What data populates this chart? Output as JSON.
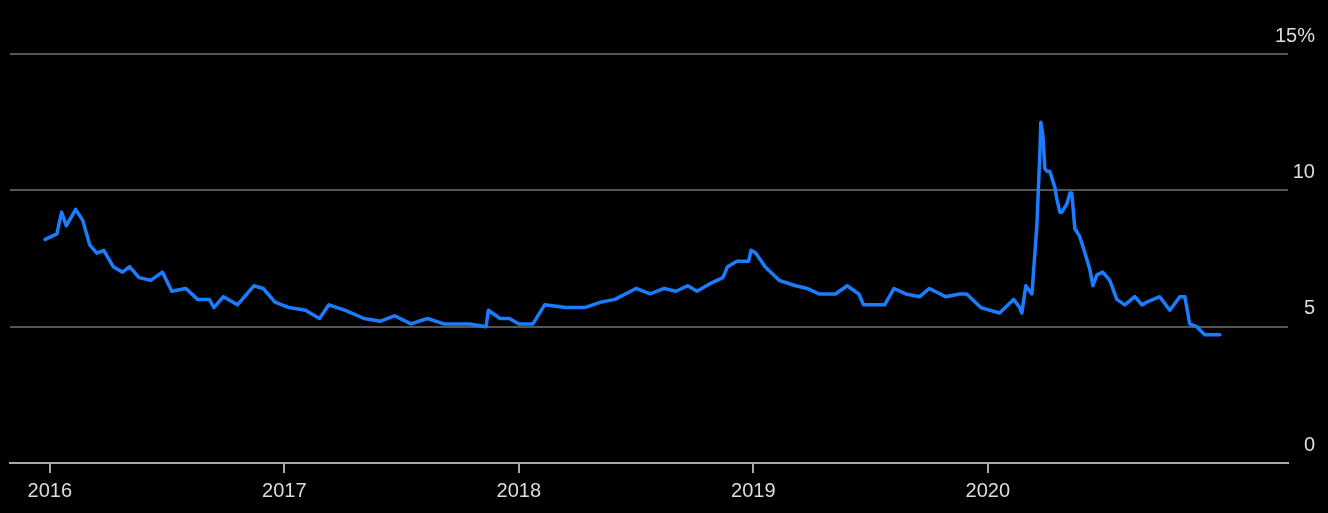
{
  "chart_data": {
    "type": "line",
    "x": [
      2015.98,
      2016.03,
      2016.05,
      2016.07,
      2016.11,
      2016.14,
      2016.17,
      2016.2,
      2016.23,
      2016.27,
      2016.31,
      2016.34,
      2016.38,
      2016.43,
      2016.48,
      2016.52,
      2016.58,
      2016.63,
      2016.68,
      2016.7,
      2016.74,
      2016.8,
      2016.87,
      2016.91,
      2016.96,
      2017.02,
      2017.09,
      2017.15,
      2017.19,
      2017.26,
      2017.34,
      2017.41,
      2017.47,
      2017.54,
      2017.61,
      2017.68,
      2017.79,
      2017.86,
      2017.87,
      2017.92,
      2017.96,
      2018.0,
      2018.06,
      2018.11,
      2018.2,
      2018.28,
      2018.35,
      2018.41,
      2018.5,
      2018.56,
      2018.62,
      2018.67,
      2018.72,
      2018.76,
      2018.82,
      2018.87,
      2018.89,
      2018.93,
      2018.98,
      2018.99,
      2019.01,
      2019.05,
      2019.11,
      2019.18,
      2019.23,
      2019.28,
      2019.35,
      2019.4,
      2019.45,
      2019.47,
      2019.5,
      2019.56,
      2019.6,
      2019.65,
      2019.71,
      2019.75,
      2019.82,
      2019.88,
      2019.91,
      2019.97,
      2020.05,
      2020.11,
      2020.136,
      2020.145,
      2020.162,
      2020.188,
      2020.209,
      2020.222,
      2020.226,
      2020.235,
      2020.243,
      2020.252,
      2020.264,
      2020.286,
      2020.294,
      2020.307,
      2020.316,
      2020.337,
      2020.35,
      2020.358,
      2020.371,
      2020.392,
      2020.414,
      2020.435,
      2020.448,
      2020.465,
      2020.49,
      2020.52,
      2020.55,
      2020.584,
      2020.627,
      2020.657,
      2020.678,
      2020.733,
      2020.776,
      2020.819,
      2020.84,
      2020.861,
      2020.891,
      2020.925,
      2020.989
    ],
    "series": [
      {
        "color": "#1a7dff",
        "values": [
          8.2,
          8.4,
          9.2,
          8.7,
          9.3,
          8.9,
          8.0,
          7.7,
          7.8,
          7.2,
          7.0,
          7.2,
          6.8,
          6.7,
          7.0,
          6.3,
          6.4,
          6.0,
          6.0,
          5.7,
          6.1,
          5.8,
          6.5,
          6.4,
          5.9,
          5.7,
          5.6,
          5.3,
          5.8,
          5.6,
          5.3,
          5.2,
          5.4,
          5.1,
          5.3,
          5.1,
          5.1,
          5.0,
          5.6,
          5.3,
          5.3,
          5.1,
          5.1,
          5.8,
          5.7,
          5.7,
          5.9,
          6.0,
          6.4,
          6.2,
          6.4,
          6.3,
          6.5,
          6.3,
          6.6,
          6.8,
          7.2,
          7.4,
          7.4,
          7.8,
          7.7,
          7.2,
          6.7,
          6.5,
          6.4,
          6.2,
          6.2,
          6.5,
          6.2,
          5.8,
          5.8,
          5.8,
          6.4,
          6.2,
          6.1,
          6.4,
          6.1,
          6.2,
          6.2,
          5.7,
          5.5,
          6.0,
          5.7,
          5.5,
          6.5,
          6.2,
          8.7,
          11.4,
          12.5,
          12.0,
          10.8,
          10.7,
          10.7,
          10.1,
          9.7,
          9.2,
          9.2,
          9.5,
          9.9,
          9.9,
          8.6,
          8.3,
          7.7,
          7.1,
          6.5,
          6.9,
          7.0,
          6.7,
          6.0,
          5.8,
          6.1,
          5.8,
          5.9,
          6.1,
          5.6,
          6.1,
          6.1,
          5.1,
          5.0,
          4.7,
          4.7
        ]
      }
    ],
    "xlim": [
      2015.83,
      2021.28
    ],
    "xticks": [
      2016,
      2017,
      2018,
      2019,
      2020
    ],
    "ylim": [
      0,
      15
    ],
    "yticks": [
      0,
      5,
      10,
      {
        "value": 15,
        "label": "15%"
      }
    ],
    "grid": "y",
    "marker": "none",
    "line_style": "solid"
  }
}
